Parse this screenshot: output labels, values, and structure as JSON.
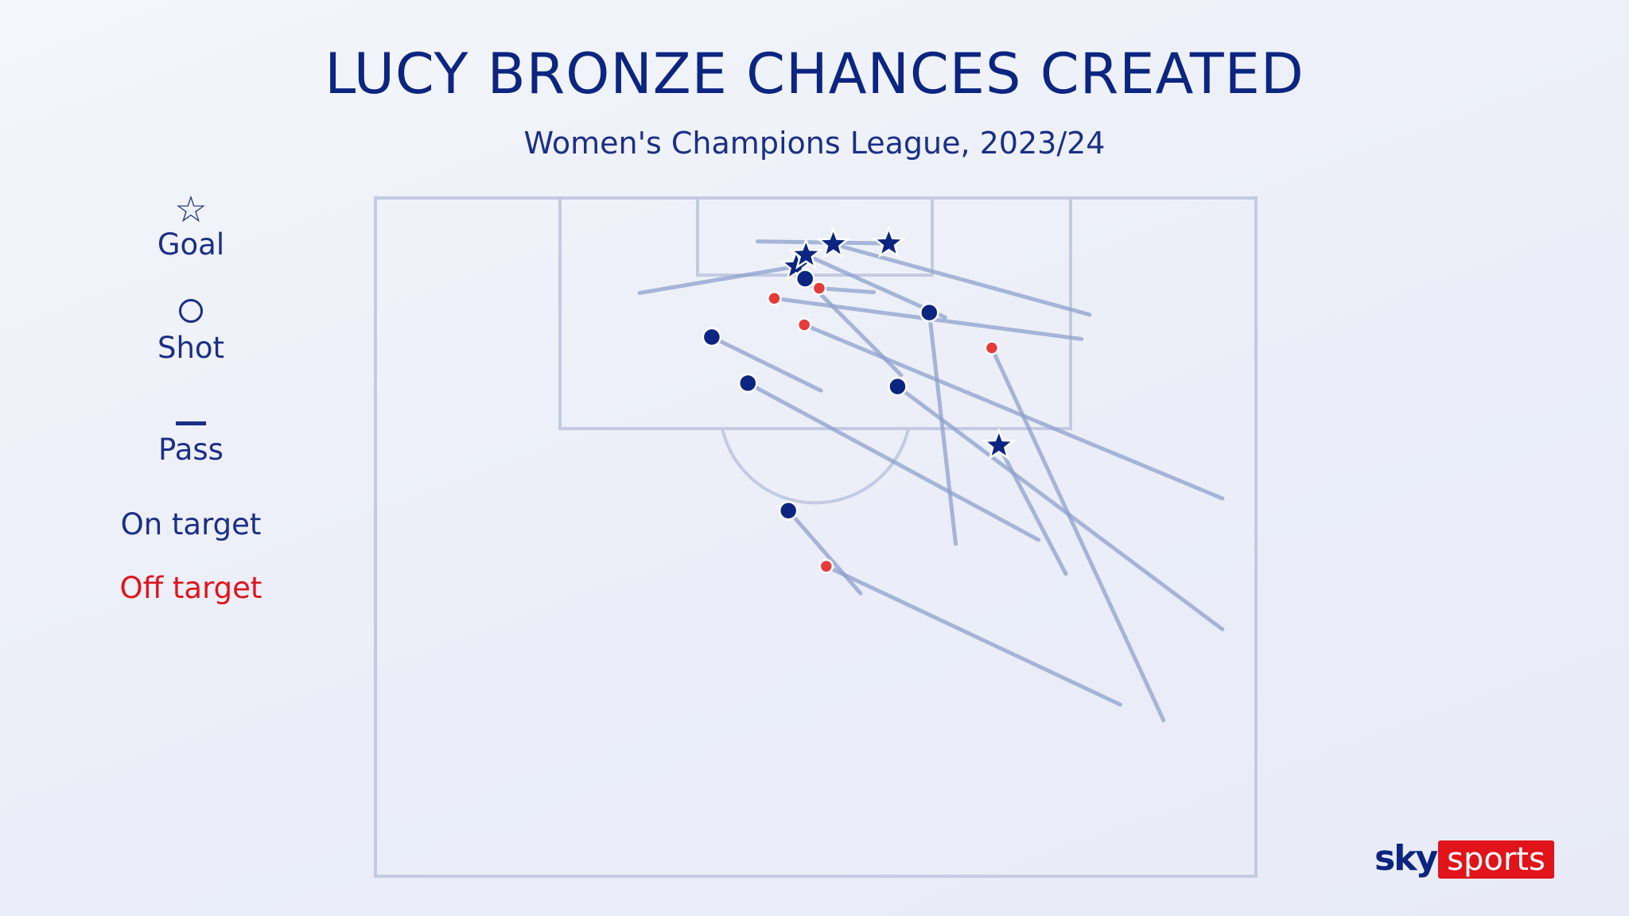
{
  "title": "LUCY BRONZE CHANCES CREATED",
  "subtitle": "Women's Champions League, 2023/24",
  "legend": {
    "goal_symbol": "☆",
    "goal_label": "Goal",
    "shot_label": "Shot",
    "pass_label": "Pass",
    "on_target_label": "On target",
    "off_target_label": "Off target"
  },
  "brand": {
    "sky": "sky",
    "sports": "sports"
  },
  "colors": {
    "on_target": "#0b2580",
    "off_target": "#e53b3b",
    "pass_line": "#8ea0cc",
    "pitch_line": "#c3cbe2",
    "brand_red": "#e1141b"
  },
  "chart_data": {
    "type": "scatter",
    "description_note": "",
    "units": "pitch coordinates: x = across pitch width (0-100, left touchline to right touchline), y = distance from goal line (0-100 of shown half)",
    "chances": [
      {
        "x": 47.8,
        "y": 10.1,
        "outcome": "goal",
        "target": "on",
        "pass_from": [
          30.0,
          14.0
        ]
      },
      {
        "x": 48.9,
        "y": 8.4,
        "outcome": "goal",
        "target": "on",
        "pass_from": [
          64.7,
          17.6
        ]
      },
      {
        "x": 58.3,
        "y": 6.7,
        "outcome": "goal",
        "target": "on",
        "pass_from": [
          43.4,
          6.4
        ]
      },
      {
        "x": 52.0,
        "y": 6.8,
        "outcome": "goal",
        "target": "on",
        "pass_from": [
          81.1,
          17.2
        ]
      },
      {
        "x": 70.8,
        "y": 36.5,
        "outcome": "goal",
        "target": "on",
        "pass_from": [
          78.4,
          55.4
        ]
      },
      {
        "x": 48.8,
        "y": 11.9,
        "outcome": "shot",
        "target": "on",
        "pass_from": [
          59.7,
          26.1
        ]
      },
      {
        "x": 62.9,
        "y": 16.9,
        "outcome": "shot",
        "target": "on",
        "pass_from": [
          65.9,
          51.0
        ]
      },
      {
        "x": 38.2,
        "y": 20.5,
        "outcome": "shot",
        "target": "on",
        "pass_from": [
          50.6,
          28.4
        ]
      },
      {
        "x": 42.3,
        "y": 27.3,
        "outcome": "shot",
        "target": "on",
        "pass_from": [
          75.3,
          50.4
        ]
      },
      {
        "x": 59.3,
        "y": 27.8,
        "outcome": "shot",
        "target": "on",
        "pass_from": [
          96.2,
          63.6
        ]
      },
      {
        "x": 46.9,
        "y": 46.1,
        "outcome": "shot",
        "target": "on",
        "pass_from": [
          55.1,
          58.3
        ]
      },
      {
        "x": 50.4,
        "y": 13.3,
        "outcome": "shot",
        "target": "off",
        "pass_from": [
          56.6,
          13.9
        ]
      },
      {
        "x": 45.3,
        "y": 14.8,
        "outcome": "shot",
        "target": "off",
        "pass_from": [
          80.2,
          20.8
        ]
      },
      {
        "x": 48.7,
        "y": 18.7,
        "outcome": "shot",
        "target": "off",
        "pass_from": [
          96.2,
          44.3
        ]
      },
      {
        "x": 70.0,
        "y": 22.1,
        "outcome": "shot",
        "target": "off",
        "pass_from": [
          89.5,
          77.0
        ]
      },
      {
        "x": 51.2,
        "y": 54.3,
        "outcome": "shot",
        "target": "off",
        "pass_from": [
          84.6,
          74.7
        ]
      }
    ]
  }
}
